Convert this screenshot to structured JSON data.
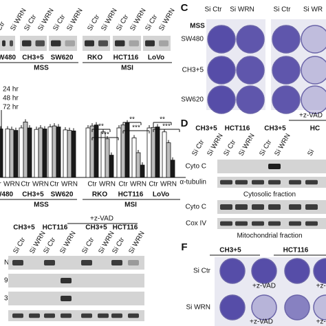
{
  "panel_a": {
    "columns": [
      "Ctr",
      "Si WRN",
      "Si Ctr",
      "Si WRN",
      "Si Ctr",
      "Si WRN",
      "Si Ctr",
      "Si WRN",
      "Si Ctr",
      "Si WRN",
      "Si Ctr",
      "Si WRN"
    ],
    "cells": [
      "W480",
      "CH3+5",
      "SW620",
      "RKO",
      "HCT116",
      "LoVo"
    ],
    "groups": [
      "MSS",
      "MSI"
    ]
  },
  "panel_b": {
    "series": [
      {
        "name": "24 hr",
        "color": "#ffffff",
        "values": [
          100,
          98,
          100,
          97,
          102,
          96,
          100,
          92,
          100,
          80,
          100,
          92
        ]
      },
      {
        "name": "48 hr",
        "color": "#bdbdbd",
        "values": [
          101,
          97,
          112,
          100,
          104,
          95,
          104,
          78,
          106,
          50,
          101,
          70
        ]
      },
      {
        "name": "72 hr",
        "color": "#1a1a1a",
        "values": [
          98,
          95,
          100,
          98,
          102,
          94,
          106,
          45,
          110,
          25,
          102,
          35
        ]
      }
    ],
    "condition_labels": [
      "Ctr",
      "WRN",
      "Ctr",
      "WRN",
      "Ctr",
      "WRN",
      "Ctr",
      "WRN",
      "Ctr",
      "WRN",
      "Ctr",
      "WRN"
    ],
    "cells": [
      "W480",
      "CH3+5",
      "SW620",
      "RKO",
      "HCT116",
      "LoVo"
    ],
    "groups": [
      "MSS",
      "MSI"
    ],
    "significance": [
      "**",
      "***",
      "**",
      "***",
      "**",
      "***"
    ]
  },
  "panel_c": {
    "letter": "C",
    "columns": [
      "Si Ctr",
      "Si WRN",
      "Si Ctr",
      "Si WR"
    ],
    "group": "MSS",
    "rows": [
      "SW480",
      "CH3+5",
      "SW620"
    ]
  },
  "panel_d": {
    "letter": "D",
    "treatment": "+z-VAD",
    "cells": [
      "CH3+5",
      "HCT116",
      "CH3+5",
      "HC"
    ],
    "columns": [
      "Si Ctr",
      "Si WRN",
      "Si Ctr",
      "Si WRN",
      "Si Ctr",
      "Si WRN",
      "Si"
    ],
    "rows": [
      "Cyto C",
      "α-tubulin",
      "Cyto C",
      "Cox IV"
    ],
    "captions": [
      "Cytosolic fraction",
      "Mitochondrial fraction"
    ]
  },
  "panel_e": {
    "treatment": "+z-VAD",
    "cells": [
      "CH3+5",
      "HCT116",
      "CH3+5",
      "HCT116"
    ],
    "columns": [
      "Si Ctr",
      "Si WRN",
      "Si Ctr",
      "Si WRN",
      "Si Ctr",
      "Si WRN",
      "Si Ctr",
      "Si WRN"
    ],
    "rows": [
      "N",
      "9",
      "3"
    ]
  },
  "panel_f": {
    "letter": "F",
    "cells": [
      "CH3+5",
      "HCT116"
    ],
    "rows": [
      "Si Ctr",
      "Si WRN"
    ],
    "treatment_labels": [
      "+z-VAD",
      "+z-V",
      "+z-VAD",
      "+z-V"
    ]
  }
}
